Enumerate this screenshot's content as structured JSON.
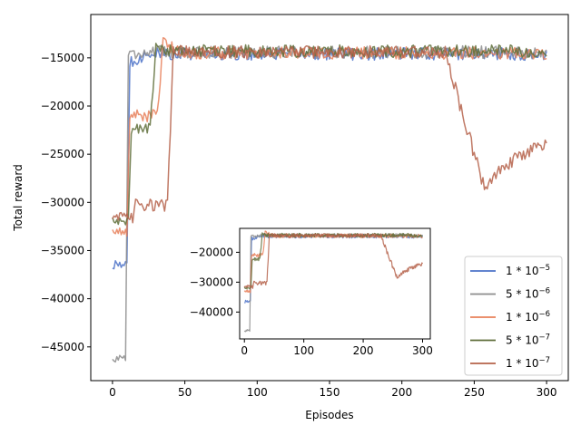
{
  "chart_data": {
    "type": "line",
    "xlabel": "Episodes",
    "ylabel": "Total reward",
    "xlim": [
      -15,
      315
    ],
    "ylim": [
      -48500,
      -10500
    ],
    "xticks": [
      0,
      50,
      100,
      150,
      200,
      250,
      300
    ],
    "yticks": [
      -45000,
      -40000,
      -35000,
      -30000,
      -25000,
      -20000,
      -15000
    ],
    "legend_position": "lower-right",
    "series": [
      {
        "name": "1 * 10^-5",
        "label_base": "1 * 10",
        "label_exp": "−5",
        "color": "#4c72c8",
        "start": -36500,
        "jump_at": 10,
        "jump_to": -15400,
        "settle": -14600,
        "late_drop": null
      },
      {
        "name": "5 * 10^-6",
        "label_base": "5 * 10",
        "label_exp": "−6",
        "color": "#8c8c8c",
        "start": -46200,
        "jump_at": 9,
        "jump_to": -14600,
        "settle": -14400,
        "late_drop": null
      },
      {
        "name": "1 * 10^-6",
        "label_base": "1 * 10",
        "label_exp": "−6",
        "color": "#e8805a",
        "start": -33000,
        "jump_at": 10,
        "jump_to": -21000,
        "jump2_at": 31,
        "jump2_to": -13400,
        "settle": -14500,
        "late_drop": null
      },
      {
        "name": "5 * 10^-7",
        "label_base": "5 * 10",
        "label_exp": "−7",
        "color": "#5f6e3a",
        "start": -32000,
        "jump_at": 11,
        "jump_to": -22300,
        "jump2_at": 26,
        "jump2_to": -14000,
        "settle": -14300,
        "late_drop": null
      },
      {
        "name": "1 * 10^-7",
        "label_base": "1 * 10",
        "label_exp": "−7",
        "color": "#b5624a",
        "start": -31500,
        "jump_at": 14,
        "jump_to": -30300,
        "jump2_at": 38,
        "jump2_to": -14200,
        "settle": -14400,
        "late_drop": {
          "at": 231,
          "bottom": -28800,
          "bottom_at": 258,
          "end": -24000
        }
      }
    ],
    "inset": {
      "xlim": [
        -8,
        313
      ],
      "ylim": [
        -49000,
        -12000
      ],
      "xticks": [
        0,
        100,
        200,
        300
      ],
      "yticks": [
        -40000,
        -30000,
        -20000
      ]
    }
  }
}
